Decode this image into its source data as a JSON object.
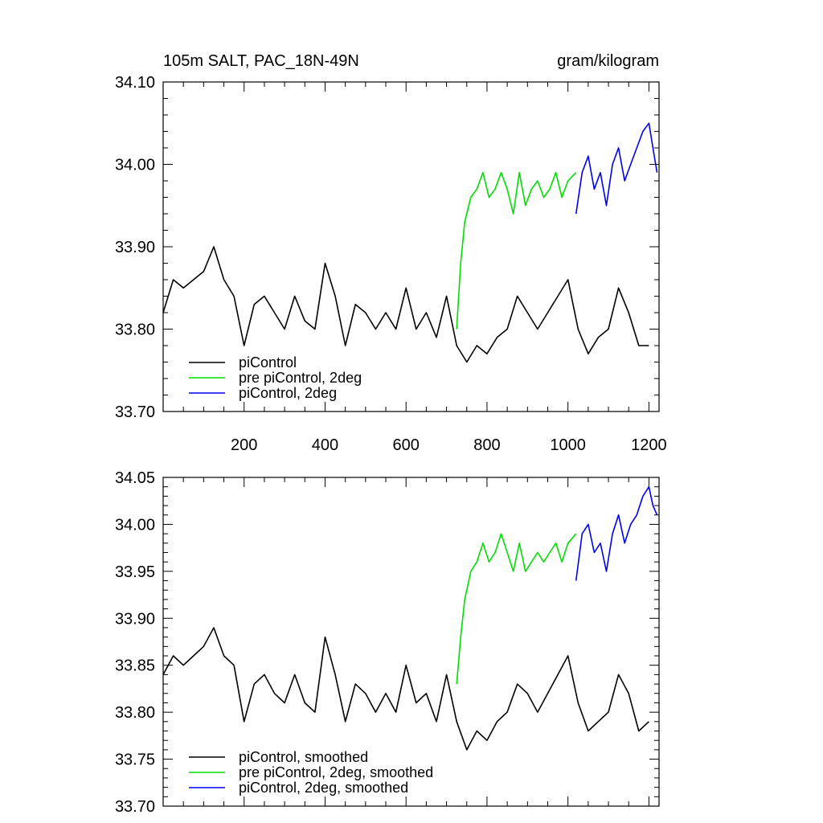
{
  "chart_data": [
    {
      "type": "line",
      "title_left": "105m SALT, PAC_18N-49N",
      "title_right": "gram/kilogram",
      "xlim": [
        0,
        1225
      ],
      "ylim": [
        33.7,
        34.1
      ],
      "x_ticks": [
        200,
        400,
        600,
        800,
        1000,
        1200
      ],
      "x_tick_labels": [
        "200",
        "400",
        "600",
        "800",
        "1000",
        "1200"
      ],
      "y_ticks": [
        33.7,
        33.8,
        33.9,
        34.0,
        34.1
      ],
      "y_tick_labels": [
        "33.70",
        "33.80",
        "33.90",
        "34.00",
        "34.10"
      ],
      "series": [
        {
          "name": "piControl",
          "color": "#000000",
          "x": [
            0,
            25,
            50,
            75,
            100,
            125,
            150,
            175,
            200,
            225,
            250,
            275,
            300,
            325,
            350,
            375,
            400,
            425,
            450,
            475,
            500,
            525,
            550,
            575,
            600,
            625,
            650,
            675,
            700,
            725,
            750,
            775,
            800,
            825,
            850,
            875,
            900,
            925,
            950,
            975,
            1000,
            1025,
            1050,
            1075,
            1100,
            1125,
            1150,
            1175,
            1200
          ],
          "values": [
            33.82,
            33.86,
            33.85,
            33.86,
            33.87,
            33.9,
            33.86,
            33.84,
            33.78,
            33.83,
            33.84,
            33.82,
            33.8,
            33.84,
            33.81,
            33.8,
            33.88,
            33.84,
            33.78,
            33.83,
            33.82,
            33.8,
            33.82,
            33.8,
            33.85,
            33.8,
            33.82,
            33.79,
            33.84,
            33.78,
            33.76,
            33.78,
            33.77,
            33.79,
            33.8,
            33.84,
            33.82,
            33.8,
            33.82,
            33.84,
            33.86,
            33.8,
            33.77,
            33.79,
            33.8,
            33.85,
            33.82,
            33.78,
            33.78
          ]
        },
        {
          "name": "pre piControl, 2deg",
          "color": "#00dd00",
          "x": [
            725,
            735,
            745,
            760,
            775,
            790,
            805,
            820,
            835,
            850,
            865,
            880,
            895,
            910,
            925,
            940,
            955,
            970,
            985,
            1000,
            1020
          ],
          "values": [
            33.8,
            33.88,
            33.93,
            33.96,
            33.97,
            33.99,
            33.96,
            33.97,
            33.99,
            33.97,
            33.94,
            33.99,
            33.95,
            33.97,
            33.98,
            33.96,
            33.97,
            33.99,
            33.96,
            33.98,
            33.99
          ]
        },
        {
          "name": "piControl, 2deg",
          "color": "#0000ee",
          "x": [
            1020,
            1035,
            1050,
            1065,
            1080,
            1095,
            1110,
            1125,
            1140,
            1155,
            1170,
            1185,
            1200,
            1210,
            1220
          ],
          "values": [
            33.94,
            33.99,
            34.01,
            33.97,
            33.99,
            33.95,
            34.0,
            34.02,
            33.98,
            34.0,
            34.02,
            34.04,
            34.05,
            34.02,
            33.99
          ]
        }
      ],
      "legend": [
        "piControl",
        "pre piControl, 2deg",
        "piControl, 2deg"
      ],
      "legend_position": "bottom-left"
    },
    {
      "type": "line",
      "xlim": [
        0,
        1225
      ],
      "ylim": [
        33.7,
        34.05
      ],
      "x_ticks": [
        200,
        400,
        600,
        800,
        1000,
        1200
      ],
      "y_ticks": [
        33.7,
        33.75,
        33.8,
        33.85,
        33.9,
        33.95,
        34.0,
        34.05
      ],
      "y_tick_labels": [
        "33.70",
        "33.75",
        "33.80",
        "33.85",
        "33.90",
        "33.95",
        "34.00",
        "34.05"
      ],
      "series": [
        {
          "name": "piControl, smoothed",
          "color": "#000000",
          "x": [
            0,
            25,
            50,
            75,
            100,
            125,
            150,
            175,
            200,
            225,
            250,
            275,
            300,
            325,
            350,
            375,
            400,
            425,
            450,
            475,
            500,
            525,
            550,
            575,
            600,
            625,
            650,
            675,
            700,
            725,
            750,
            775,
            800,
            825,
            850,
            875,
            900,
            925,
            950,
            975,
            1000,
            1025,
            1050,
            1075,
            1100,
            1125,
            1150,
            1175,
            1200
          ],
          "values": [
            33.84,
            33.86,
            33.85,
            33.86,
            33.87,
            33.89,
            33.86,
            33.85,
            33.79,
            33.83,
            33.84,
            33.82,
            33.81,
            33.84,
            33.81,
            33.8,
            33.88,
            33.84,
            33.79,
            33.83,
            33.82,
            33.8,
            33.82,
            33.8,
            33.85,
            33.81,
            33.82,
            33.79,
            33.84,
            33.79,
            33.76,
            33.78,
            33.77,
            33.79,
            33.8,
            33.83,
            33.82,
            33.8,
            33.82,
            33.84,
            33.86,
            33.81,
            33.78,
            33.79,
            33.8,
            33.84,
            33.82,
            33.78,
            33.79
          ]
        },
        {
          "name": "pre piControl, 2deg, smoothed",
          "color": "#00dd00",
          "x": [
            725,
            735,
            745,
            760,
            775,
            790,
            805,
            820,
            835,
            850,
            865,
            880,
            895,
            910,
            925,
            940,
            955,
            970,
            985,
            1000,
            1020
          ],
          "values": [
            33.83,
            33.88,
            33.92,
            33.95,
            33.96,
            33.98,
            33.96,
            33.97,
            33.99,
            33.97,
            33.95,
            33.98,
            33.95,
            33.96,
            33.97,
            33.96,
            33.97,
            33.98,
            33.96,
            33.98,
            33.99
          ]
        },
        {
          "name": "piControl, 2deg, smoothed",
          "color": "#0000ee",
          "x": [
            1020,
            1035,
            1050,
            1065,
            1080,
            1095,
            1110,
            1125,
            1140,
            1155,
            1170,
            1185,
            1200,
            1210,
            1220
          ],
          "values": [
            33.94,
            33.99,
            34.0,
            33.97,
            33.98,
            33.95,
            33.99,
            34.01,
            33.98,
            34.0,
            34.01,
            34.03,
            34.04,
            34.02,
            34.01
          ]
        }
      ],
      "legend": [
        "piControl, smoothed",
        "pre piControl, 2deg, smoothed",
        "piControl, 2deg, smoothed"
      ],
      "legend_position": "bottom-left"
    }
  ]
}
